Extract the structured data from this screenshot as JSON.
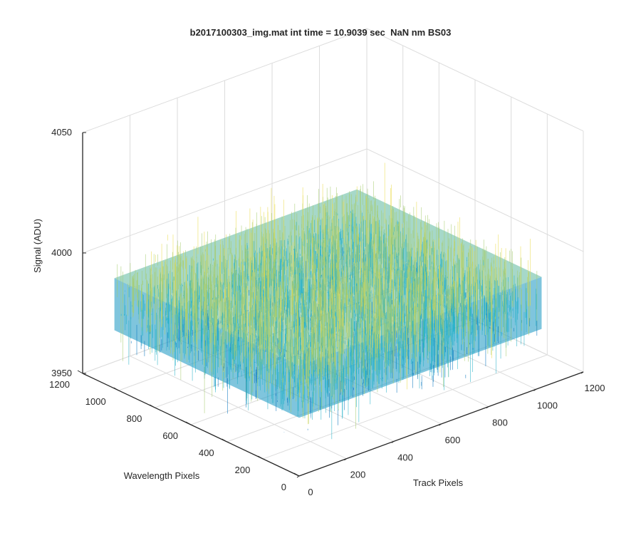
{
  "chart_data": {
    "type": "surface3d",
    "title": "b2017100303_img.mat int time = 10.9039 sec  NaN nm BS03",
    "xlabel": "Track Pixels",
    "ylabel": "Wavelength Pixels",
    "zlabel": "Signal (ADU)",
    "x_ticks": [
      "0",
      "200",
      "400",
      "600",
      "800",
      "1000",
      "1200"
    ],
    "y_ticks": [
      "0",
      "200",
      "400",
      "600",
      "800",
      "1000",
      "1200"
    ],
    "z_ticks": [
      "3950",
      "4000",
      "4050"
    ],
    "xlim": [
      0,
      1200
    ],
    "ylim": [
      0,
      1200
    ],
    "zlim": [
      3950,
      4050
    ],
    "data_extent": {
      "x": [
        0,
        1024
      ],
      "y": [
        0,
        1024
      ]
    },
    "signal_mean": 3985,
    "signal_spread": 12,
    "grid": true,
    "colormap": "parula",
    "colors": {
      "surface_dark": "#0072bd",
      "surface_mid": "#23b0c8",
      "surface_light": "#a6cc6e",
      "peak": "#eadb4a"
    }
  }
}
